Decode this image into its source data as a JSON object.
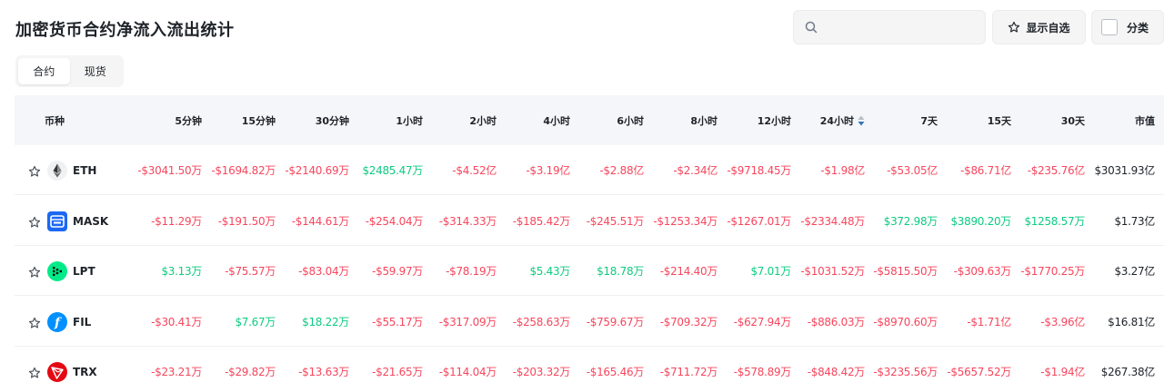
{
  "page": {
    "title": "加密货币合约净流入流出统计",
    "search_placeholder": "",
    "favorites_label": "显示自选",
    "category_label": "分类"
  },
  "colors": {
    "negative": "#f6465d",
    "positive": "#0ecb81",
    "header_bg": "#f5f6fa",
    "sort_active": "#3375bb"
  },
  "tabs": [
    {
      "label": "合约",
      "active": true
    },
    {
      "label": "现货",
      "active": false
    }
  ],
  "table": {
    "columns": [
      "币种",
      "5分钟",
      "15分钟",
      "30分钟",
      "1小时",
      "2小时",
      "4小时",
      "6小时",
      "8小时",
      "12小时",
      "24小时",
      "7天",
      "15天",
      "30天",
      "市值"
    ],
    "sorted_column": "24小时",
    "rows": [
      {
        "coin": "ETH",
        "icon": "ethereum-icon",
        "cells": [
          {
            "v": "-$3041.50万",
            "s": "neg"
          },
          {
            "v": "-$1694.82万",
            "s": "neg"
          },
          {
            "v": "-$2140.69万",
            "s": "neg"
          },
          {
            "v": "$2485.47万",
            "s": "pos"
          },
          {
            "v": "-$4.52亿",
            "s": "neg"
          },
          {
            "v": "-$3.19亿",
            "s": "neg"
          },
          {
            "v": "-$2.88亿",
            "s": "neg"
          },
          {
            "v": "-$2.34亿",
            "s": "neg"
          },
          {
            "v": "-$9718.45万",
            "s": "neg"
          },
          {
            "v": "-$1.98亿",
            "s": "neg"
          },
          {
            "v": "-$53.05亿",
            "s": "neg"
          },
          {
            "v": "-$86.71亿",
            "s": "neg"
          },
          {
            "v": "-$235.76亿",
            "s": "neg"
          },
          {
            "v": "$3031.93亿",
            "s": "mcap"
          }
        ]
      },
      {
        "coin": "MASK",
        "icon": "mask-network-icon",
        "cells": [
          {
            "v": "-$11.29万",
            "s": "neg"
          },
          {
            "v": "-$191.50万",
            "s": "neg"
          },
          {
            "v": "-$144.61万",
            "s": "neg"
          },
          {
            "v": "-$254.04万",
            "s": "neg"
          },
          {
            "v": "-$314.33万",
            "s": "neg"
          },
          {
            "v": "-$185.42万",
            "s": "neg"
          },
          {
            "v": "-$245.51万",
            "s": "neg"
          },
          {
            "v": "-$1253.34万",
            "s": "neg"
          },
          {
            "v": "-$1267.01万",
            "s": "neg"
          },
          {
            "v": "-$2334.48万",
            "s": "neg"
          },
          {
            "v": "$372.98万",
            "s": "pos"
          },
          {
            "v": "$3890.20万",
            "s": "pos"
          },
          {
            "v": "$1258.57万",
            "s": "pos"
          },
          {
            "v": "$1.73亿",
            "s": "mcap"
          }
        ]
      },
      {
        "coin": "LPT",
        "icon": "livepeer-icon",
        "cells": [
          {
            "v": "$3.13万",
            "s": "pos"
          },
          {
            "v": "-$75.57万",
            "s": "neg"
          },
          {
            "v": "-$83.04万",
            "s": "neg"
          },
          {
            "v": "-$59.97万",
            "s": "neg"
          },
          {
            "v": "-$78.19万",
            "s": "neg"
          },
          {
            "v": "$5.43万",
            "s": "pos"
          },
          {
            "v": "$18.78万",
            "s": "pos"
          },
          {
            "v": "-$214.40万",
            "s": "neg"
          },
          {
            "v": "$7.01万",
            "s": "pos"
          },
          {
            "v": "-$1031.52万",
            "s": "neg"
          },
          {
            "v": "-$5815.50万",
            "s": "neg"
          },
          {
            "v": "-$309.63万",
            "s": "neg"
          },
          {
            "v": "-$1770.25万",
            "s": "neg"
          },
          {
            "v": "$3.27亿",
            "s": "mcap"
          }
        ]
      },
      {
        "coin": "FIL",
        "icon": "filecoin-icon",
        "cells": [
          {
            "v": "-$30.41万",
            "s": "neg"
          },
          {
            "v": "$7.67万",
            "s": "pos"
          },
          {
            "v": "$18.22万",
            "s": "pos"
          },
          {
            "v": "-$55.17万",
            "s": "neg"
          },
          {
            "v": "-$317.09万",
            "s": "neg"
          },
          {
            "v": "-$258.63万",
            "s": "neg"
          },
          {
            "v": "-$759.67万",
            "s": "neg"
          },
          {
            "v": "-$709.32万",
            "s": "neg"
          },
          {
            "v": "-$627.94万",
            "s": "neg"
          },
          {
            "v": "-$886.03万",
            "s": "neg"
          },
          {
            "v": "-$8970.60万",
            "s": "neg"
          },
          {
            "v": "-$1.71亿",
            "s": "neg"
          },
          {
            "v": "-$3.96亿",
            "s": "neg"
          },
          {
            "v": "$16.81亿",
            "s": "mcap"
          }
        ]
      },
      {
        "coin": "TRX",
        "icon": "tron-icon",
        "cells": [
          {
            "v": "-$23.21万",
            "s": "neg"
          },
          {
            "v": "-$29.82万",
            "s": "neg"
          },
          {
            "v": "-$13.63万",
            "s": "neg"
          },
          {
            "v": "-$21.65万",
            "s": "neg"
          },
          {
            "v": "-$114.04万",
            "s": "neg"
          },
          {
            "v": "-$203.32万",
            "s": "neg"
          },
          {
            "v": "-$165.46万",
            "s": "neg"
          },
          {
            "v": "-$711.72万",
            "s": "neg"
          },
          {
            "v": "-$578.89万",
            "s": "neg"
          },
          {
            "v": "-$848.42万",
            "s": "neg"
          },
          {
            "v": "-$3235.56万",
            "s": "neg"
          },
          {
            "v": "-$5657.52万",
            "s": "neg"
          },
          {
            "v": "-$1.94亿",
            "s": "neg"
          },
          {
            "v": "$267.38亿",
            "s": "mcap"
          }
        ]
      }
    ]
  }
}
